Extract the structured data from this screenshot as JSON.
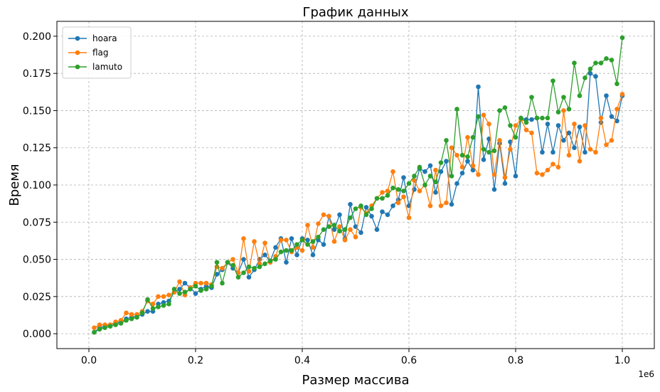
{
  "chart_data": {
    "type": "line",
    "title": "График данных",
    "xlabel": "Размер массива",
    "ylabel": "Время",
    "x_offset_label": "1e6",
    "xlim": [
      -0.06,
      1.06
    ],
    "ylim": [
      -0.01,
      0.21
    ],
    "x_ticks": [
      0.0,
      0.2,
      0.4,
      0.6,
      0.8,
      1.0
    ],
    "x_tick_labels": [
      "0.0",
      "0.2",
      "0.4",
      "0.6",
      "0.8",
      "1.0"
    ],
    "y_ticks": [
      0.0,
      0.025,
      0.05,
      0.075,
      0.1,
      0.125,
      0.15,
      0.175,
      0.2
    ],
    "y_tick_labels": [
      "0.000",
      "0.025",
      "0.050",
      "0.075",
      "0.100",
      "0.125",
      "0.150",
      "0.175",
      "0.200"
    ],
    "grid": true,
    "legend_position": "top-left",
    "x": [
      0.01,
      0.02,
      0.03,
      0.04,
      0.05,
      0.06,
      0.07,
      0.08,
      0.09,
      0.1,
      0.11,
      0.12,
      0.13,
      0.14,
      0.15,
      0.16,
      0.17,
      0.18,
      0.19,
      0.2,
      0.21,
      0.22,
      0.23,
      0.24,
      0.25,
      0.26,
      0.27,
      0.28,
      0.29,
      0.3,
      0.31,
      0.32,
      0.33,
      0.34,
      0.35,
      0.36,
      0.37,
      0.38,
      0.39,
      0.4,
      0.41,
      0.42,
      0.43,
      0.44,
      0.45,
      0.46,
      0.47,
      0.48,
      0.49,
      0.5,
      0.51,
      0.52,
      0.53,
      0.54,
      0.55,
      0.56,
      0.57,
      0.58,
      0.59,
      0.6,
      0.61,
      0.62,
      0.63,
      0.64,
      0.65,
      0.66,
      0.67,
      0.68,
      0.69,
      0.7,
      0.71,
      0.72,
      0.73,
      0.74,
      0.75,
      0.76,
      0.77,
      0.78,
      0.79,
      0.8,
      0.81,
      0.82,
      0.83,
      0.84,
      0.85,
      0.86,
      0.87,
      0.88,
      0.89,
      0.9,
      0.91,
      0.92,
      0.93,
      0.94,
      0.95,
      0.96,
      0.97,
      0.98,
      0.99,
      1.0
    ],
    "series": [
      {
        "name": "hoara",
        "color": "#1f77b4",
        "values": [
          0.001,
          0.004,
          0.005,
          0.006,
          0.007,
          0.008,
          0.01,
          0.011,
          0.012,
          0.013,
          0.015,
          0.015,
          0.02,
          0.021,
          0.022,
          0.028,
          0.03,
          0.034,
          0.031,
          0.027,
          0.03,
          0.032,
          0.031,
          0.04,
          0.043,
          0.048,
          0.044,
          0.041,
          0.05,
          0.038,
          0.043,
          0.05,
          0.053,
          0.049,
          0.058,
          0.064,
          0.048,
          0.064,
          0.053,
          0.064,
          0.063,
          0.053,
          0.063,
          0.06,
          0.079,
          0.07,
          0.08,
          0.064,
          0.087,
          0.072,
          0.068,
          0.085,
          0.079,
          0.07,
          0.082,
          0.08,
          0.086,
          0.09,
          0.105,
          0.086,
          0.097,
          0.111,
          0.109,
          0.113,
          0.095,
          0.109,
          0.116,
          0.087,
          0.101,
          0.108,
          0.116,
          0.11,
          0.166,
          0.117,
          0.131,
          0.097,
          0.128,
          0.101,
          0.129,
          0.106,
          0.145,
          0.144,
          0.144,
          0.145,
          0.122,
          0.141,
          0.122,
          0.14,
          0.13,
          0.135,
          0.125,
          0.139,
          0.122,
          0.175,
          0.173,
          0.142,
          0.16,
          0.146,
          0.143,
          0.16
        ]
      },
      {
        "name": "flag",
        "color": "#ff7f0e",
        "values": [
          0.004,
          0.006,
          0.006,
          0.006,
          0.008,
          0.009,
          0.014,
          0.013,
          0.013,
          0.015,
          0.022,
          0.02,
          0.025,
          0.025,
          0.026,
          0.028,
          0.035,
          0.026,
          0.031,
          0.034,
          0.034,
          0.034,
          0.033,
          0.045,
          0.044,
          0.048,
          0.05,
          0.041,
          0.064,
          0.042,
          0.062,
          0.047,
          0.061,
          0.048,
          0.052,
          0.063,
          0.063,
          0.055,
          0.058,
          0.056,
          0.073,
          0.058,
          0.074,
          0.08,
          0.079,
          0.062,
          0.072,
          0.063,
          0.07,
          0.065,
          0.085,
          0.081,
          0.086,
          0.091,
          0.095,
          0.096,
          0.109,
          0.088,
          0.092,
          0.078,
          0.103,
          0.096,
          0.1,
          0.086,
          0.11,
          0.086,
          0.088,
          0.125,
          0.12,
          0.112,
          0.132,
          0.113,
          0.107,
          0.147,
          0.141,
          0.107,
          0.13,
          0.105,
          0.124,
          0.14,
          0.144,
          0.137,
          0.135,
          0.108,
          0.107,
          0.11,
          0.114,
          0.112,
          0.15,
          0.12,
          0.141,
          0.116,
          0.14,
          0.124,
          0.122,
          0.145,
          0.127,
          0.13,
          0.151,
          0.161
        ]
      },
      {
        "name": "lamuto",
        "color": "#2ca02c",
        "values": [
          0.001,
          0.003,
          0.004,
          0.005,
          0.006,
          0.007,
          0.009,
          0.01,
          0.011,
          0.014,
          0.023,
          0.017,
          0.018,
          0.019,
          0.02,
          0.03,
          0.027,
          0.028,
          0.03,
          0.032,
          0.029,
          0.03,
          0.032,
          0.048,
          0.034,
          0.048,
          0.046,
          0.038,
          0.041,
          0.045,
          0.044,
          0.045,
          0.047,
          0.049,
          0.05,
          0.055,
          0.056,
          0.056,
          0.06,
          0.063,
          0.06,
          0.062,
          0.065,
          0.07,
          0.072,
          0.073,
          0.069,
          0.07,
          0.078,
          0.084,
          0.086,
          0.08,
          0.084,
          0.091,
          0.091,
          0.093,
          0.098,
          0.097,
          0.096,
          0.101,
          0.106,
          0.112,
          0.1,
          0.106,
          0.102,
          0.115,
          0.13,
          0.106,
          0.151,
          0.12,
          0.119,
          0.132,
          0.146,
          0.124,
          0.122,
          0.123,
          0.15,
          0.152,
          0.14,
          0.132,
          0.145,
          0.142,
          0.159,
          0.145,
          0.145,
          0.145,
          0.17,
          0.149,
          0.159,
          0.151,
          0.182,
          0.16,
          0.172,
          0.178,
          0.182,
          0.182,
          0.185,
          0.184,
          0.168,
          0.199
        ]
      }
    ]
  }
}
